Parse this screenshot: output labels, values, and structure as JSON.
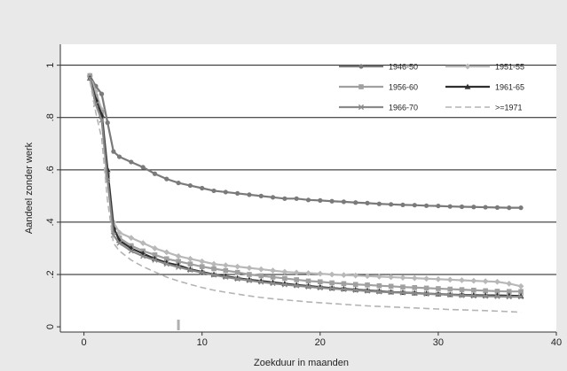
{
  "chart_data": {
    "type": "line",
    "xlabel": "Zoekduur in maanden",
    "ylabel": "Aandeel zonder werk",
    "xlim": [
      -2,
      40
    ],
    "ylim": [
      -0.02,
      1.08
    ],
    "xticks": [
      0,
      10,
      20,
      30,
      40
    ],
    "xtick_labels": [
      "0",
      "10",
      "20",
      "30",
      "40"
    ],
    "yticks": [
      0,
      0.2,
      0.4,
      0.6,
      0.8,
      1
    ],
    "ytick_labels": [
      "0",
      ".2",
      ".4",
      ".6",
      ".8",
      "1"
    ],
    "grid": "horizontal",
    "legend_position": "top-right",
    "legend_columns": 2,
    "colors": {
      "plot_background": "#ffffff",
      "outer_background": "#e9e9e9",
      "grid": "#1a1a1a"
    },
    "series": [
      {
        "name": "1946-50",
        "color": "#7a7a7a",
        "marker": "circle",
        "dash": "",
        "x": [
          0.5,
          1,
          1.5,
          2,
          2.5,
          3,
          4,
          5,
          6,
          7,
          8,
          9,
          10,
          11,
          12,
          13,
          14,
          15,
          16,
          17,
          18,
          19,
          20,
          21,
          22,
          23,
          24,
          25,
          26,
          27,
          28,
          29,
          30,
          31,
          32,
          33,
          34,
          35,
          36,
          37
        ],
        "y": [
          0.96,
          0.92,
          0.89,
          0.78,
          0.67,
          0.65,
          0.63,
          0.61,
          0.585,
          0.565,
          0.55,
          0.54,
          0.53,
          0.52,
          0.515,
          0.51,
          0.505,
          0.5,
          0.495,
          0.49,
          0.49,
          0.485,
          0.483,
          0.48,
          0.478,
          0.475,
          0.473,
          0.47,
          0.468,
          0.466,
          0.465,
          0.463,
          0.462,
          0.46,
          0.459,
          0.458,
          0.457,
          0.456,
          0.455,
          0.455
        ]
      },
      {
        "name": "1951-55",
        "color": "#b8b8b8",
        "marker": "diamond",
        "dash": "",
        "x": [
          0.5,
          1,
          1.5,
          2,
          2.5,
          3,
          4,
          5,
          6,
          7,
          8,
          9,
          10,
          11,
          12,
          13,
          14,
          15,
          16,
          17,
          18,
          19,
          20,
          21,
          22,
          23,
          24,
          25,
          26,
          27,
          28,
          29,
          30,
          31,
          32,
          33,
          34,
          35,
          36,
          37
        ],
        "y": [
          0.96,
          0.9,
          0.83,
          0.6,
          0.4,
          0.36,
          0.34,
          0.32,
          0.3,
          0.285,
          0.27,
          0.26,
          0.25,
          0.24,
          0.235,
          0.23,
          0.225,
          0.22,
          0.215,
          0.21,
          0.207,
          0.205,
          0.203,
          0.2,
          0.198,
          0.196,
          0.194,
          0.192,
          0.19,
          0.188,
          0.186,
          0.184,
          0.182,
          0.18,
          0.178,
          0.176,
          0.174,
          0.172,
          0.165,
          0.155
        ]
      },
      {
        "name": "1956-60",
        "color": "#a0a0a0",
        "marker": "square",
        "dash": "",
        "x": [
          0.5,
          1,
          1.5,
          2,
          2.5,
          3,
          4,
          5,
          6,
          7,
          8,
          9,
          10,
          11,
          12,
          13,
          14,
          15,
          16,
          17,
          18,
          19,
          20,
          21,
          22,
          23,
          24,
          25,
          26,
          27,
          28,
          29,
          30,
          31,
          32,
          33,
          34,
          35,
          36,
          37
        ],
        "y": [
          0.96,
          0.88,
          0.82,
          0.58,
          0.37,
          0.34,
          0.31,
          0.29,
          0.275,
          0.26,
          0.25,
          0.24,
          0.23,
          0.222,
          0.215,
          0.208,
          0.2,
          0.195,
          0.19,
          0.185,
          0.18,
          0.175,
          0.172,
          0.168,
          0.165,
          0.162,
          0.16,
          0.157,
          0.155,
          0.152,
          0.15,
          0.148,
          0.146,
          0.144,
          0.142,
          0.14,
          0.138,
          0.136,
          0.135,
          0.135
        ]
      },
      {
        "name": "1961-65",
        "color": "#2e2e2e",
        "marker": "triangle",
        "dash": "",
        "x": [
          0.5,
          1,
          1.5,
          2,
          2.5,
          3,
          4,
          5,
          6,
          7,
          8,
          9,
          10,
          11,
          12,
          13,
          14,
          15,
          16,
          17,
          18,
          19,
          20,
          21,
          22,
          23,
          24,
          25,
          26,
          27,
          28,
          29,
          30,
          31,
          32,
          33,
          34,
          35,
          36,
          37
        ],
        "y": [
          0.95,
          0.87,
          0.81,
          0.6,
          0.38,
          0.33,
          0.3,
          0.28,
          0.26,
          0.245,
          0.235,
          0.22,
          0.21,
          0.2,
          0.193,
          0.186,
          0.18,
          0.175,
          0.17,
          0.165,
          0.16,
          0.156,
          0.152,
          0.148,
          0.145,
          0.142,
          0.139,
          0.136,
          0.133,
          0.131,
          0.129,
          0.127,
          0.125,
          0.123,
          0.122,
          0.121,
          0.12,
          0.12,
          0.119,
          0.118
        ]
      },
      {
        "name": "1966-70",
        "color": "#8a8a8a",
        "marker": "x",
        "dash": "",
        "x": [
          0.5,
          1,
          1.5,
          2,
          2.5,
          3,
          4,
          5,
          6,
          7,
          8,
          9,
          10,
          11,
          12,
          13,
          14,
          15,
          16,
          17,
          18,
          19,
          20,
          21,
          22,
          23,
          24,
          25,
          26,
          27,
          28,
          29,
          30,
          31,
          32,
          33,
          34,
          35,
          36,
          37
        ],
        "y": [
          0.95,
          0.85,
          0.79,
          0.56,
          0.35,
          0.32,
          0.29,
          0.27,
          0.255,
          0.24,
          0.228,
          0.217,
          0.207,
          0.198,
          0.19,
          0.183,
          0.177,
          0.171,
          0.166,
          0.161,
          0.157,
          0.153,
          0.149,
          0.146,
          0.143,
          0.14,
          0.137,
          0.134,
          0.132,
          0.13,
          0.128,
          0.126,
          0.124,
          0.122,
          0.12,
          0.118,
          0.117,
          0.116,
          0.115,
          0.115
        ]
      },
      {
        "name": ">=1971",
        "color": "#b4b4b4",
        "marker": "none",
        "dash": "7 4",
        "x": [
          0.5,
          1,
          1.5,
          2,
          2.5,
          3,
          4,
          5,
          6,
          7,
          8,
          9,
          10,
          11,
          12,
          13,
          14,
          15,
          16,
          17,
          18,
          19,
          20,
          21,
          22,
          23,
          24,
          25,
          26,
          27,
          28,
          29,
          30,
          31,
          32,
          33,
          34,
          35,
          36,
          37
        ],
        "y": [
          0.94,
          0.82,
          0.72,
          0.48,
          0.32,
          0.29,
          0.255,
          0.23,
          0.21,
          0.19,
          0.175,
          0.162,
          0.15,
          0.14,
          0.132,
          0.125,
          0.118,
          0.112,
          0.107,
          0.103,
          0.099,
          0.095,
          0.092,
          0.089,
          0.086,
          0.083,
          0.08,
          0.078,
          0.076,
          0.074,
          0.072,
          0.07,
          0.068,
          0.066,
          0.065,
          0.063,
          0.062,
          0.06,
          0.058,
          0.056
        ]
      }
    ]
  }
}
